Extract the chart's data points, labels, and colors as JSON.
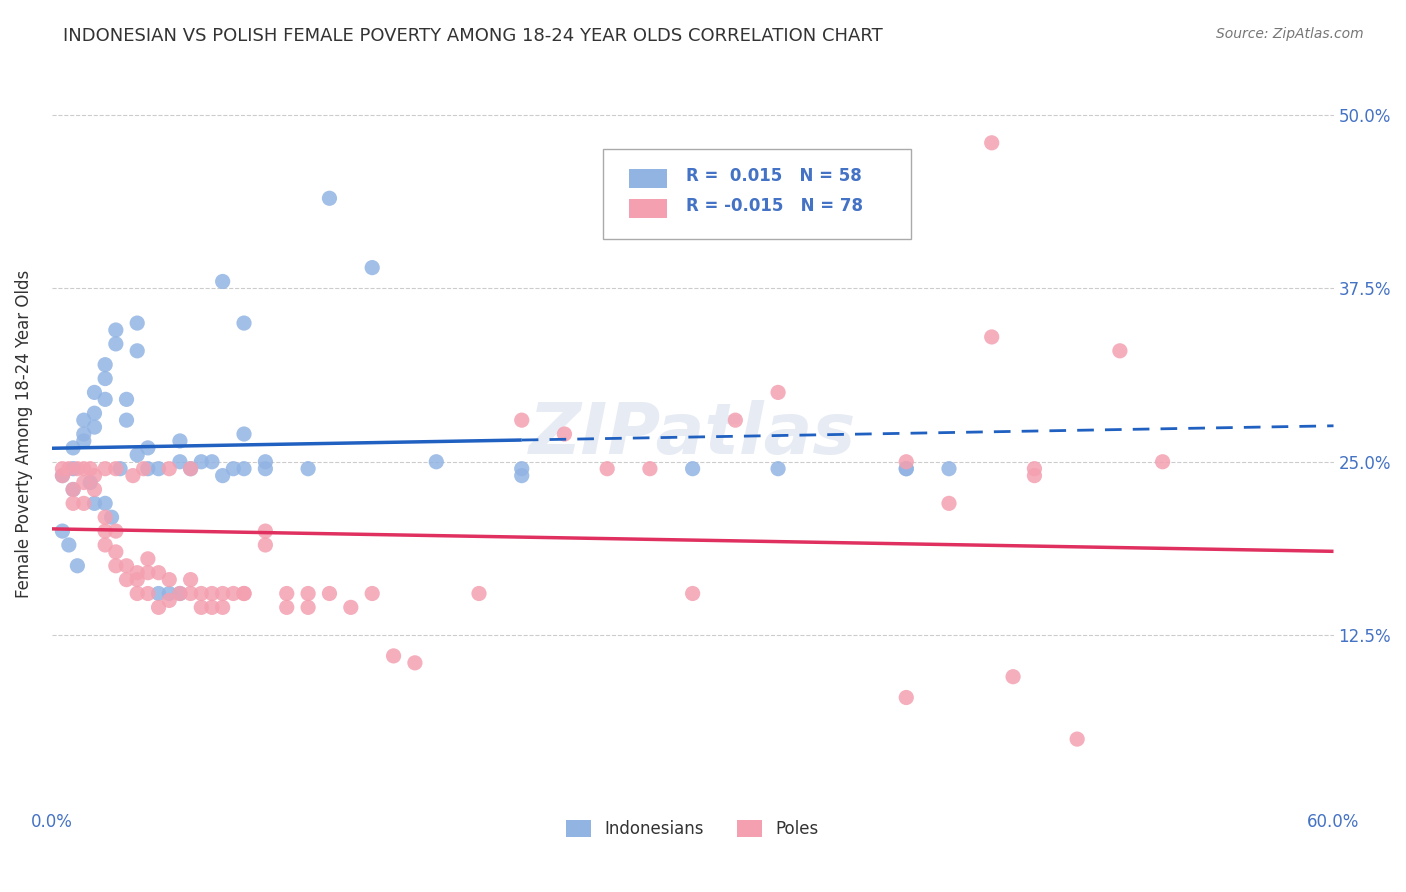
{
  "title": "INDONESIAN VS POLISH FEMALE POVERTY AMONG 18-24 YEAR OLDS CORRELATION CHART",
  "source": "Source: ZipAtlas.com",
  "xlim": [
    0.0,
    0.6
  ],
  "ylim": [
    0.0,
    0.54
  ],
  "indonesian_R": 0.015,
  "indonesian_N": 58,
  "polish_R": -0.015,
  "polish_N": 78,
  "legend_labels": [
    "Indonesians",
    "Poles"
  ],
  "color_indonesian": "#92b4e3",
  "color_polish": "#f4a0b0",
  "line_color_indonesian": "#2060c0",
  "line_color_polish": "#e03060",
  "watermark": "ZIPatlas",
  "indonesian_x": [
    0.005,
    0.01,
    0.01,
    0.01,
    0.015,
    0.015,
    0.015,
    0.02,
    0.02,
    0.02,
    0.02,
    0.025,
    0.025,
    0.025,
    0.03,
    0.03,
    0.035,
    0.035,
    0.04,
    0.04,
    0.04,
    0.045,
    0.045,
    0.05,
    0.055,
    0.06,
    0.06,
    0.065,
    0.07,
    0.08,
    0.08,
    0.085,
    0.09,
    0.09,
    0.1,
    0.1,
    0.12,
    0.13,
    0.15,
    0.18,
    0.22,
    0.22,
    0.3,
    0.34,
    0.4,
    0.4,
    0.005,
    0.008,
    0.012,
    0.018,
    0.025,
    0.028,
    0.032,
    0.05,
    0.06,
    0.075,
    0.09,
    0.42
  ],
  "indonesian_y": [
    0.24,
    0.26,
    0.245,
    0.23,
    0.27,
    0.265,
    0.28,
    0.3,
    0.285,
    0.275,
    0.22,
    0.32,
    0.31,
    0.295,
    0.345,
    0.335,
    0.295,
    0.28,
    0.33,
    0.35,
    0.255,
    0.26,
    0.245,
    0.245,
    0.155,
    0.155,
    0.265,
    0.245,
    0.25,
    0.24,
    0.38,
    0.245,
    0.35,
    0.245,
    0.25,
    0.245,
    0.245,
    0.44,
    0.39,
    0.25,
    0.245,
    0.24,
    0.245,
    0.245,
    0.245,
    0.245,
    0.2,
    0.19,
    0.175,
    0.235,
    0.22,
    0.21,
    0.245,
    0.155,
    0.25,
    0.25,
    0.27,
    0.245
  ],
  "polish_x": [
    0.005,
    0.008,
    0.01,
    0.01,
    0.015,
    0.015,
    0.015,
    0.02,
    0.02,
    0.025,
    0.025,
    0.025,
    0.03,
    0.03,
    0.03,
    0.035,
    0.035,
    0.04,
    0.04,
    0.04,
    0.045,
    0.045,
    0.045,
    0.05,
    0.05,
    0.055,
    0.055,
    0.06,
    0.065,
    0.065,
    0.07,
    0.07,
    0.075,
    0.075,
    0.08,
    0.08,
    0.085,
    0.09,
    0.09,
    0.1,
    0.1,
    0.11,
    0.11,
    0.12,
    0.12,
    0.13,
    0.14,
    0.15,
    0.16,
    0.17,
    0.2,
    0.22,
    0.24,
    0.26,
    0.28,
    0.3,
    0.32,
    0.34,
    0.4,
    0.42,
    0.44,
    0.46,
    0.5,
    0.52,
    0.4,
    0.45,
    0.005,
    0.012,
    0.018,
    0.025,
    0.03,
    0.038,
    0.043,
    0.055,
    0.065,
    0.44,
    0.46,
    0.48
  ],
  "polish_y": [
    0.24,
    0.245,
    0.23,
    0.22,
    0.245,
    0.235,
    0.22,
    0.24,
    0.23,
    0.21,
    0.2,
    0.19,
    0.2,
    0.185,
    0.175,
    0.175,
    0.165,
    0.17,
    0.165,
    0.155,
    0.18,
    0.17,
    0.155,
    0.17,
    0.145,
    0.165,
    0.15,
    0.155,
    0.165,
    0.155,
    0.145,
    0.155,
    0.155,
    0.145,
    0.145,
    0.155,
    0.155,
    0.155,
    0.155,
    0.2,
    0.19,
    0.155,
    0.145,
    0.155,
    0.145,
    0.155,
    0.145,
    0.155,
    0.11,
    0.105,
    0.155,
    0.28,
    0.27,
    0.245,
    0.245,
    0.155,
    0.28,
    0.3,
    0.25,
    0.22,
    0.34,
    0.245,
    0.33,
    0.25,
    0.08,
    0.095,
    0.245,
    0.245,
    0.245,
    0.245,
    0.245,
    0.24,
    0.245,
    0.245,
    0.245,
    0.48,
    0.24,
    0.05
  ],
  "yticks_vals": [
    0.125,
    0.25,
    0.375,
    0.5
  ],
  "ytick_labels": [
    "12.5%",
    "25.0%",
    "37.5%",
    "50.0%"
  ],
  "xtick_vals": [
    0.0,
    0.1,
    0.2,
    0.3,
    0.4,
    0.5,
    0.6
  ],
  "xtick_labels": [
    "0.0%",
    "",
    "",
    "",
    "",
    "",
    "60.0%"
  ],
  "trend_split_x": 0.22
}
